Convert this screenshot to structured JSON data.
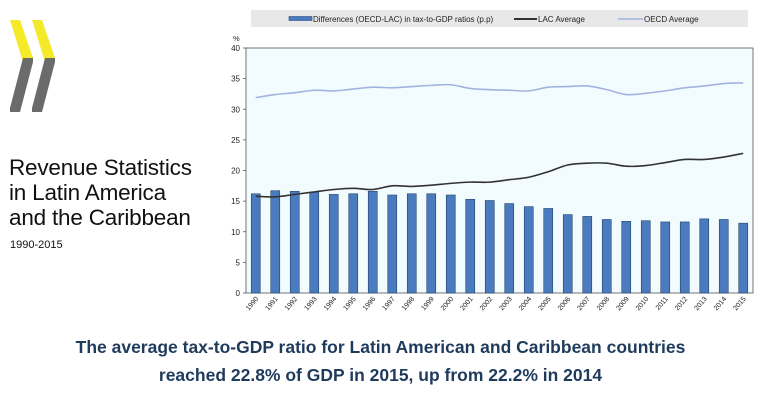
{
  "logo": {
    "name": "OECD",
    "colors": {
      "yellow": "#f5ea2a",
      "grey": "#6b6b6b"
    }
  },
  "publication": {
    "title_lines": [
      "Revenue Statistics",
      "in Latin America",
      "and the Caribbean"
    ],
    "years": "1990-2015"
  },
  "caption": {
    "lines": [
      "The average tax-to-GDP ratio for Latin American and Caribbean countries",
      "reached 22.8% of GDP in 2015, up from 22.2% in 2014"
    ]
  },
  "chart_data": {
    "type": "bar+line",
    "ylabel": "%",
    "ylim": [
      0,
      40
    ],
    "yticks": [
      0,
      5,
      10,
      15,
      20,
      25,
      30,
      35,
      40
    ],
    "legend_position": "top",
    "grid": false,
    "categories": [
      "1990",
      "1991",
      "1992",
      "1993",
      "1994",
      "1995",
      "1996",
      "1997",
      "1998",
      "1999",
      "2000",
      "2001",
      "2002",
      "2003",
      "2004",
      "2005",
      "2006",
      "2007",
      "2008",
      "2009",
      "2010",
      "2011",
      "2012",
      "2013",
      "2014",
      "2015"
    ],
    "series": [
      {
        "name": "Differences (OECD-LAC) in tax-to-GDP ratios (p.p)",
        "kind": "bar",
        "color": "#4a7bbf",
        "values": [
          16.2,
          16.7,
          16.6,
          16.5,
          16.1,
          16.2,
          16.6,
          16.0,
          16.2,
          16.2,
          16.0,
          15.3,
          15.1,
          14.6,
          14.1,
          13.8,
          12.8,
          12.5,
          12.0,
          11.7,
          11.8,
          11.6,
          11.6,
          12.1,
          12.0,
          11.4
        ]
      },
      {
        "name": "LAC Average",
        "kind": "line",
        "color": "#333333",
        "values": [
          15.8,
          15.7,
          16.1,
          16.5,
          16.9,
          17.1,
          16.9,
          17.5,
          17.4,
          17.6,
          17.9,
          18.1,
          18.1,
          18.5,
          18.9,
          19.8,
          20.9,
          21.2,
          21.2,
          20.7,
          20.8,
          21.3,
          21.8,
          21.8,
          22.2,
          22.8
        ]
      },
      {
        "name": "OECD Average",
        "kind": "line",
        "color": "#a3b3e0",
        "values": [
          31.9,
          32.4,
          32.7,
          33.1,
          33.0,
          33.3,
          33.6,
          33.5,
          33.7,
          33.9,
          34.0,
          33.4,
          33.2,
          33.1,
          33.0,
          33.6,
          33.7,
          33.8,
          33.2,
          32.4,
          32.6,
          33.0,
          33.5,
          33.8,
          34.2,
          34.3
        ]
      }
    ],
    "plot_background": "#f2fbfd"
  }
}
